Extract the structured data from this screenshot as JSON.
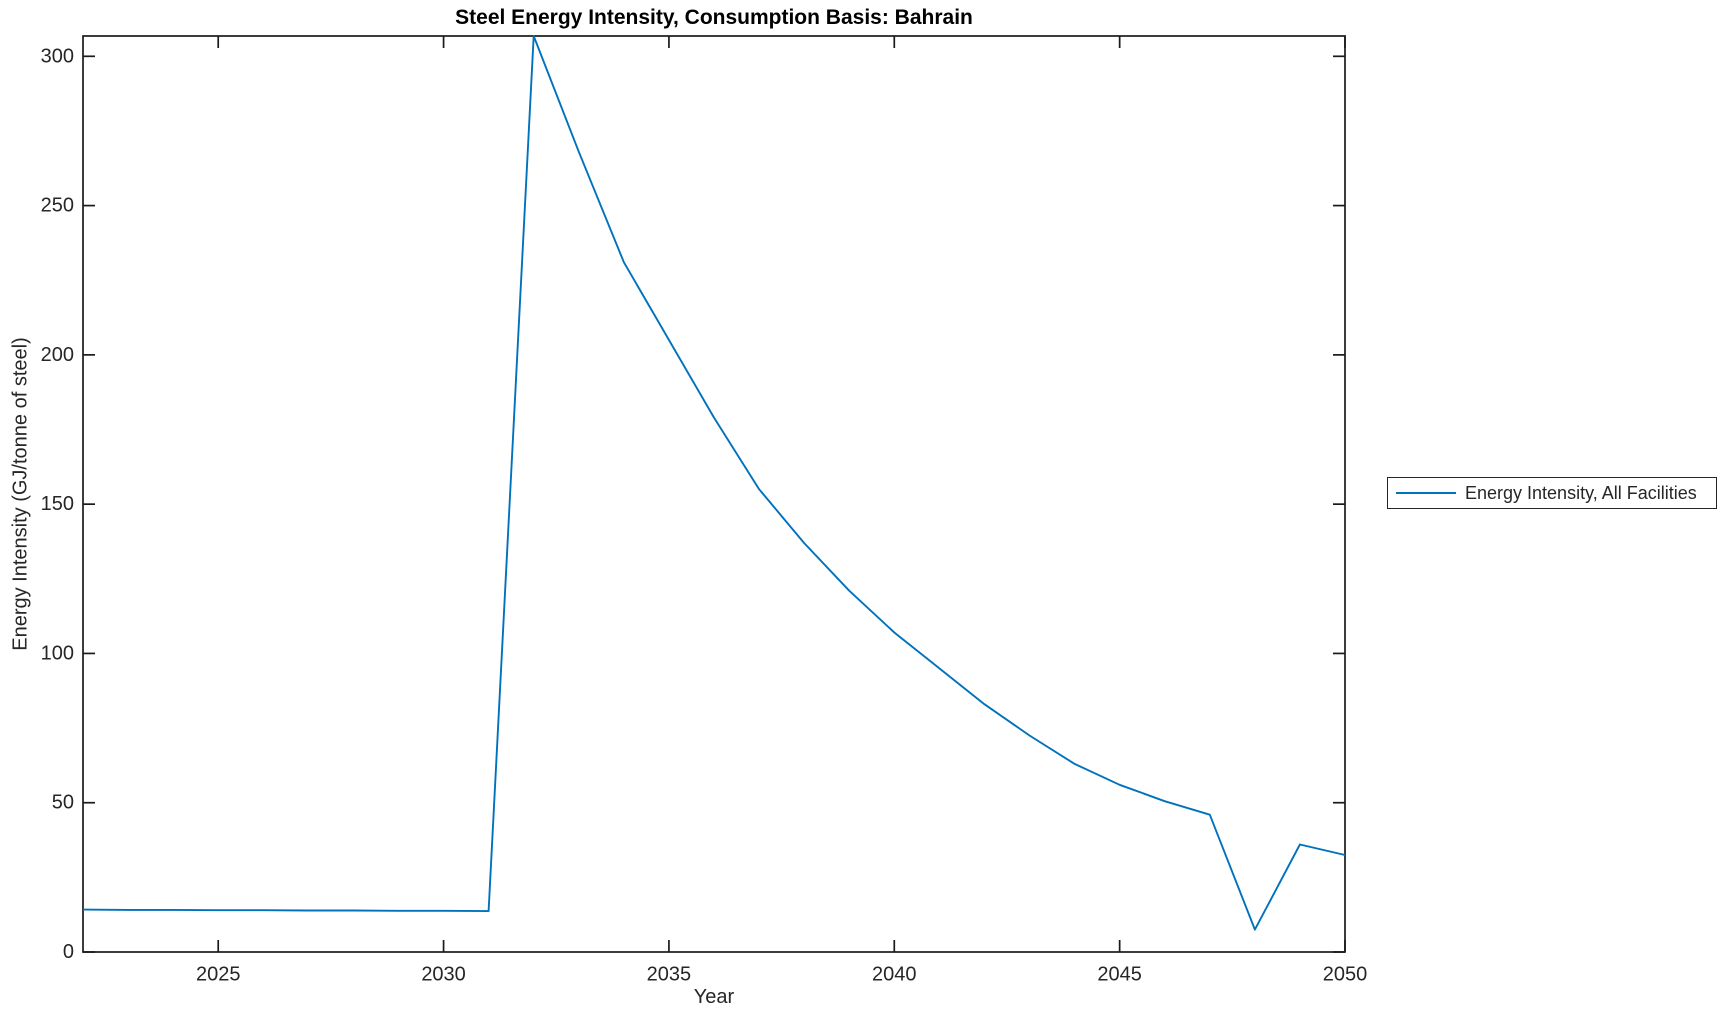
{
  "figure": {
    "title": "Steel Energy Intensity, Consumption Basis: Bahrain",
    "xlabel": "Year",
    "ylabel": "Energy Intensity (GJ/tonne of steel)"
  },
  "legend": {
    "entries": [
      {
        "label": "Energy Intensity, All Facilities",
        "color": "#0072BD"
      }
    ]
  },
  "colors": {
    "line": "#0072BD",
    "axis": "#1a1a1a",
    "tick_text": "#262626",
    "title_text": "#000000",
    "background": "#ffffff"
  },
  "chart_data": {
    "type": "line",
    "title": "Steel Energy Intensity, Consumption Basis: Bahrain",
    "xlabel": "Year",
    "ylabel": "Energy Intensity (GJ/tonne of steel)",
    "xlim": [
      2022,
      2050
    ],
    "ylim": [
      0,
      306.8
    ],
    "x_ticks": [
      2025,
      2030,
      2035,
      2040,
      2045,
      2050
    ],
    "y_ticks": [
      0,
      50,
      100,
      150,
      200,
      250,
      300
    ],
    "grid": false,
    "legend_position": "outside-right",
    "series": [
      {
        "name": "Energy Intensity, All Facilities",
        "color": "#0072BD",
        "x": [
          2022,
          2023,
          2024,
          2025,
          2026,
          2027,
          2028,
          2029,
          2030,
          2031,
          2032,
          2033,
          2034,
          2035,
          2036,
          2037,
          2038,
          2039,
          2040,
          2041,
          2042,
          2043,
          2044,
          2045,
          2046,
          2047,
          2048,
          2049,
          2050
        ],
        "values": [
          14.2,
          14.1,
          14.1,
          14.0,
          14.0,
          13.9,
          13.9,
          13.8,
          13.8,
          13.7,
          306.8,
          268,
          231,
          205,
          179,
          155,
          137,
          121,
          107,
          95,
          83,
          72.5,
          63,
          56,
          50.5,
          46,
          7.5,
          36,
          32.5
        ]
      }
    ]
  }
}
